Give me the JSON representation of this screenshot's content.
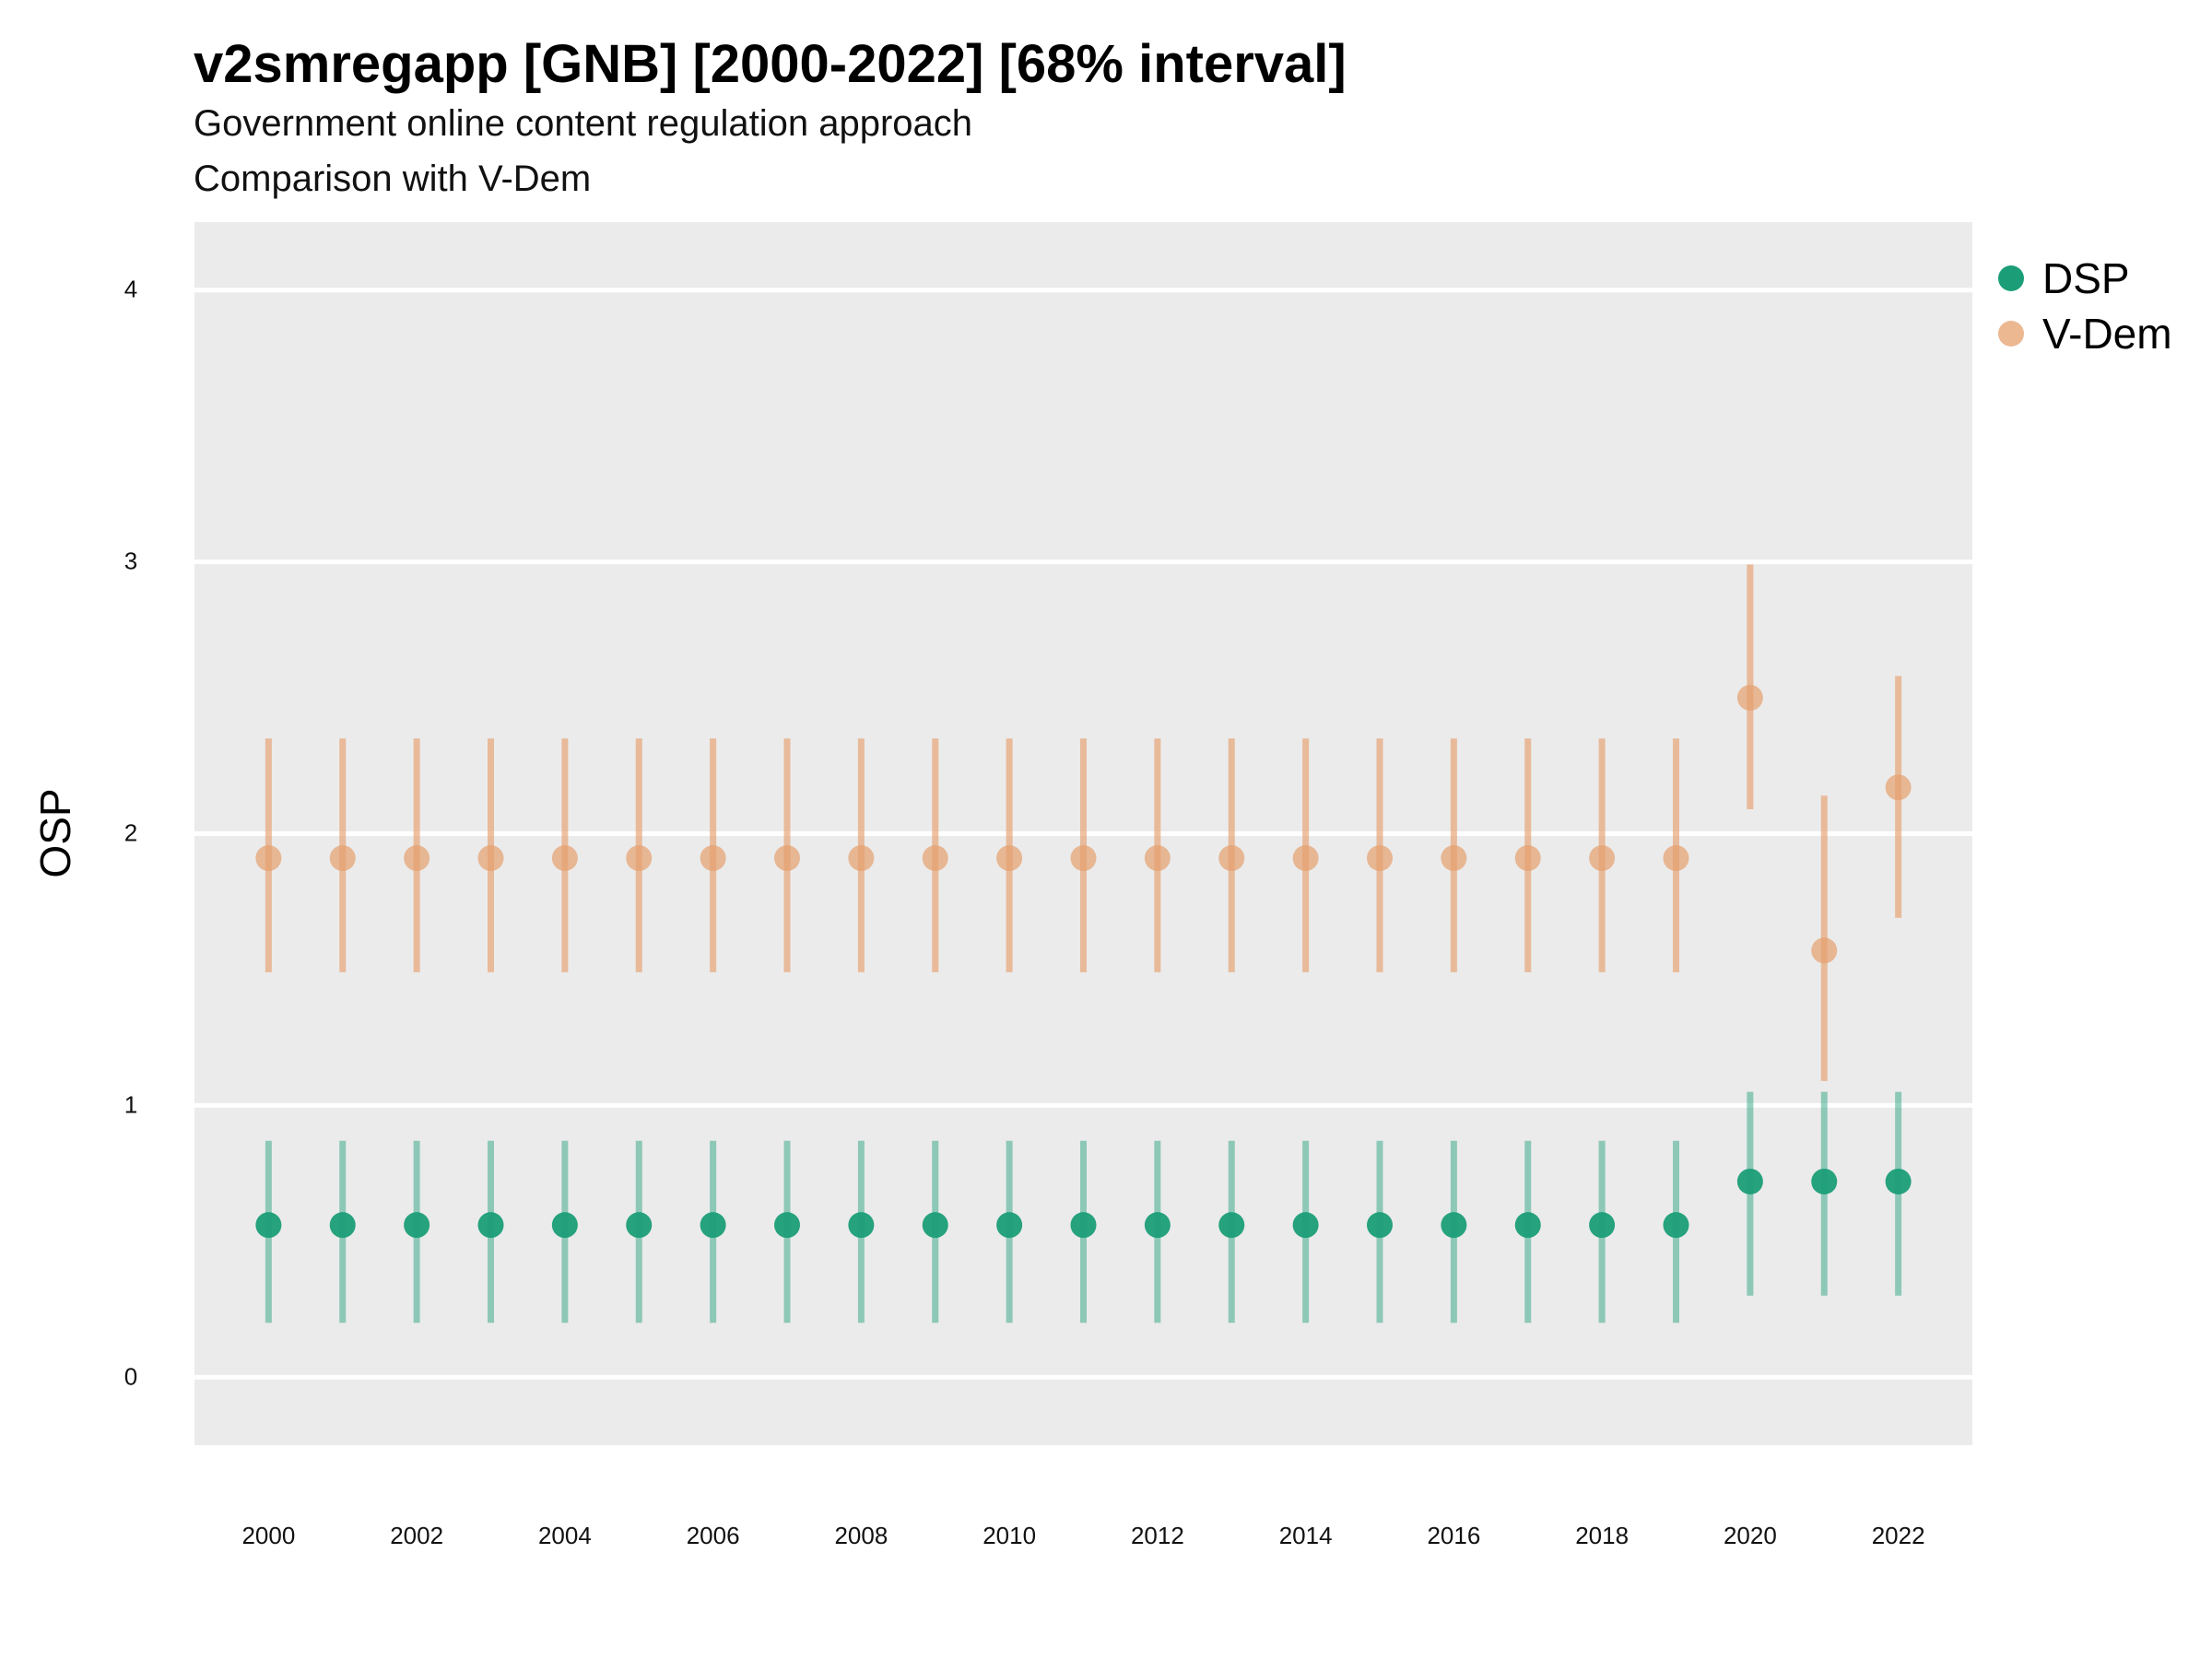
{
  "title": "v2smregapp [GNB] [2000-2022] [68% interval]",
  "subtitle_lines": [
    "Government online content regulation approach",
    "Comparison with V-Dem"
  ],
  "legend": [
    {
      "name": "DSP",
      "color": "#1b9e77"
    },
    {
      "name": "V-Dem",
      "color": "#e6a06e"
    }
  ],
  "chart_data": {
    "type": "scatter",
    "title": "v2smregapp [GNB] [2000-2022] [68% interval]",
    "subtitle": "Government online content regulation approach / Comparison with V-Dem",
    "xlabel": "",
    "ylabel": "OSP",
    "x": [
      2000,
      2001,
      2002,
      2003,
      2004,
      2005,
      2006,
      2007,
      2008,
      2009,
      2010,
      2011,
      2012,
      2013,
      2014,
      2015,
      2016,
      2017,
      2018,
      2019,
      2020,
      2021,
      2022
    ],
    "x_ticks": [
      "2000",
      "2002",
      "2004",
      "2006",
      "2008",
      "2010",
      "2012",
      "2014",
      "2016",
      "2018",
      "2020",
      "2022"
    ],
    "y_ticks": [
      "0",
      "1",
      "2",
      "3",
      "4"
    ],
    "ylim": [
      -0.25,
      4.25
    ],
    "xlim": [
      1999,
      2023
    ],
    "grid": true,
    "legend_position": "top-right",
    "series": [
      {
        "name": "DSP",
        "color": "#1b9e77",
        "values": [
          0.56,
          0.56,
          0.56,
          0.56,
          0.56,
          0.56,
          0.56,
          0.56,
          0.56,
          0.56,
          0.56,
          0.56,
          0.56,
          0.56,
          0.56,
          0.56,
          0.56,
          0.56,
          0.56,
          0.56,
          0.72,
          0.72,
          0.72
        ],
        "lower": [
          0.2,
          0.2,
          0.2,
          0.2,
          0.2,
          0.2,
          0.2,
          0.2,
          0.2,
          0.2,
          0.2,
          0.2,
          0.2,
          0.2,
          0.2,
          0.2,
          0.2,
          0.2,
          0.2,
          0.2,
          0.3,
          0.3,
          0.3
        ],
        "upper": [
          0.87,
          0.87,
          0.87,
          0.87,
          0.87,
          0.87,
          0.87,
          0.87,
          0.87,
          0.87,
          0.87,
          0.87,
          0.87,
          0.87,
          0.87,
          0.87,
          0.87,
          0.87,
          0.87,
          0.87,
          1.05,
          1.05,
          1.05
        ]
      },
      {
        "name": "V-Dem",
        "color": "#e6a06e",
        "values": [
          1.91,
          1.91,
          1.91,
          1.91,
          1.91,
          1.91,
          1.91,
          1.91,
          1.91,
          1.91,
          1.91,
          1.91,
          1.91,
          1.91,
          1.91,
          1.91,
          1.91,
          1.91,
          1.91,
          1.91,
          2.5,
          1.57,
          2.17
        ],
        "lower": [
          1.49,
          1.49,
          1.49,
          1.49,
          1.49,
          1.49,
          1.49,
          1.49,
          1.49,
          1.49,
          1.49,
          1.49,
          1.49,
          1.49,
          1.49,
          1.49,
          1.49,
          1.49,
          1.49,
          1.49,
          2.09,
          1.09,
          1.69
        ],
        "upper": [
          2.35,
          2.35,
          2.35,
          2.35,
          2.35,
          2.35,
          2.35,
          2.35,
          2.35,
          2.35,
          2.35,
          2.35,
          2.35,
          2.35,
          2.35,
          2.35,
          2.35,
          2.35,
          2.35,
          2.35,
          2.99,
          2.14,
          2.58
        ]
      }
    ]
  }
}
